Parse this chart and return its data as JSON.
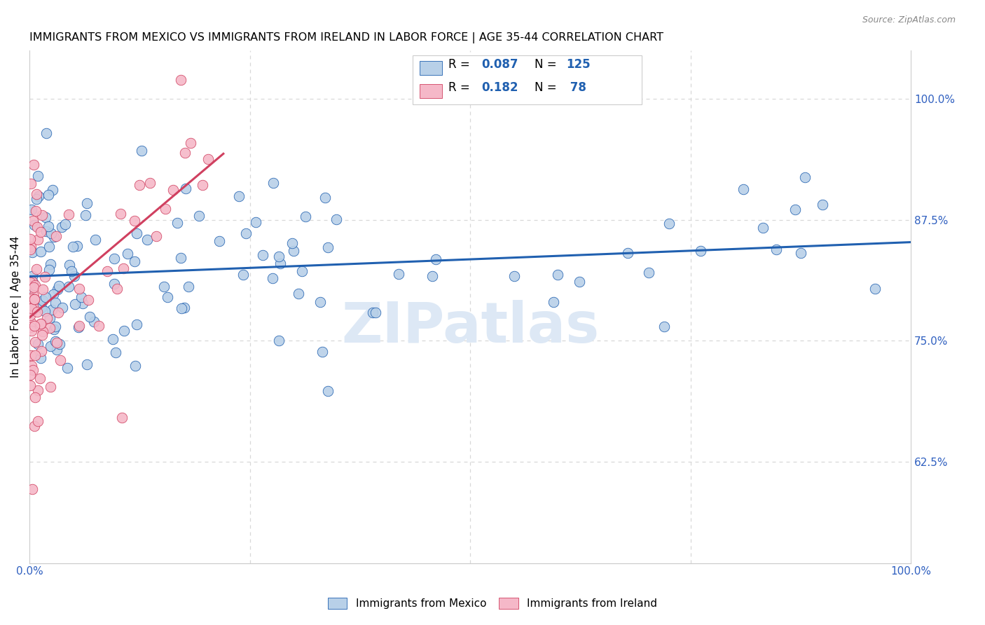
{
  "title": "IMMIGRANTS FROM MEXICO VS IMMIGRANTS FROM IRELAND IN LABOR FORCE | AGE 35-44 CORRELATION CHART",
  "source": "Source: ZipAtlas.com",
  "ylabel": "In Labor Force | Age 35-44",
  "blue_scatter_color": "#b8d0e8",
  "pink_scatter_color": "#f5b8c8",
  "blue_line_color": "#2060b0",
  "pink_line_color": "#d04060",
  "watermark_color": "#dde8f5",
  "grid_color": "#d8d8d8",
  "tick_label_color": "#3060c0",
  "R_mexico": 0.087,
  "N_mexico": 125,
  "R_ireland": 0.182,
  "N_ireland": 78,
  "xlim": [
    0.0,
    1.0
  ],
  "ylim": [
    0.52,
    1.05
  ],
  "yticks": [
    0.625,
    0.75,
    0.875,
    1.0
  ],
  "ytick_labels": [
    "62.5%",
    "75.0%",
    "87.5%",
    "100.0%"
  ],
  "xticks": [
    0.0,
    1.0
  ],
  "xtick_labels": [
    "0.0%",
    "100.0%"
  ]
}
